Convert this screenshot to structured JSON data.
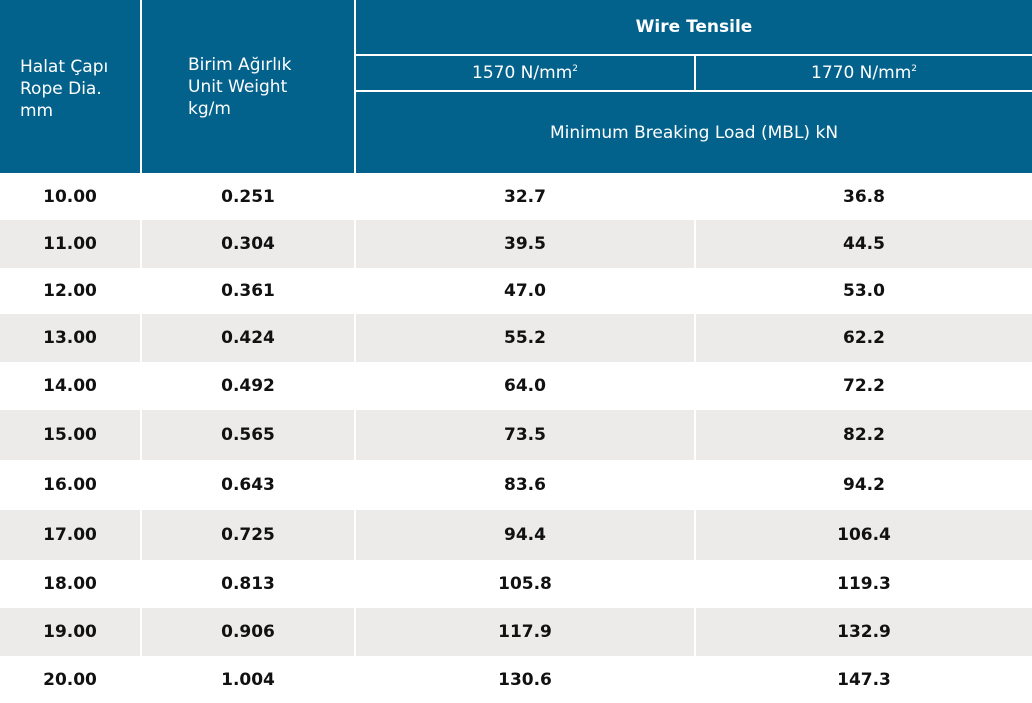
{
  "header": {
    "col1": [
      "Halat Çapı",
      "Rope Dia.",
      "mm"
    ],
    "col2": [
      "Birim Ağırlık",
      "Unit Weight",
      "kg/m"
    ],
    "group_title": "Wire Tensile",
    "tensile_1": {
      "value": "1570 N/mm",
      "sup": "2"
    },
    "tensile_2": {
      "value": "1770 N/mm",
      "sup": "2"
    },
    "mbl_label": "Minimum Breaking Load (MBL) kN"
  },
  "rows": [
    [
      "10.00",
      "0.251",
      "32.7",
      "36.8"
    ],
    [
      "11.00",
      "0.304",
      "39.5",
      "44.5"
    ],
    [
      "12.00",
      "0.361",
      "47.0",
      "53.0"
    ],
    [
      "13.00",
      "0.424",
      "55.2",
      "62.2"
    ],
    [
      "14.00",
      "0.492",
      "64.0",
      "72.2"
    ],
    [
      "15.00",
      "0.565",
      "73.5",
      "82.2"
    ],
    [
      "16.00",
      "0.643",
      "83.6",
      "94.2"
    ],
    [
      "17.00",
      "0.725",
      "94.4",
      "106.4"
    ],
    [
      "18.00",
      "0.813",
      "105.8",
      "119.3"
    ],
    [
      "19.00",
      "0.906",
      "117.9",
      "132.9"
    ],
    [
      "20.00",
      "1.004",
      "130.6",
      "147.3"
    ]
  ],
  "colors": {
    "header_bg": "#03628c",
    "stripe_bg": "#ecebea"
  }
}
